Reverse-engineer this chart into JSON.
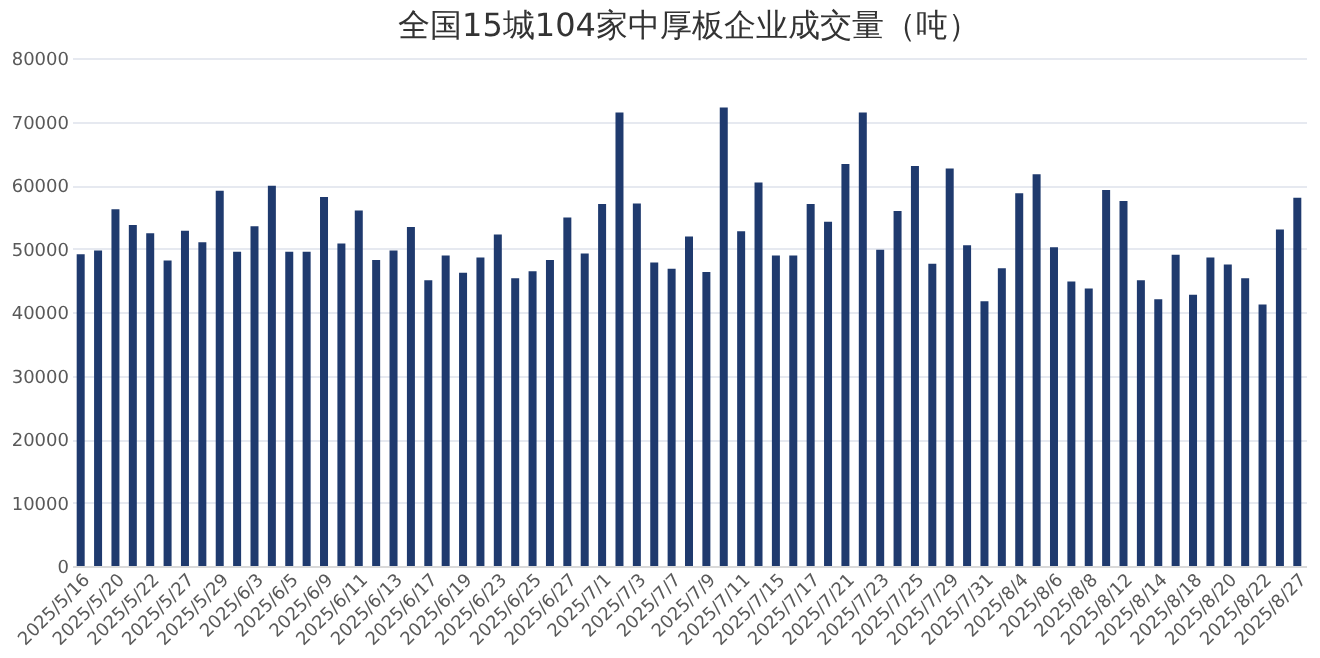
{
  "chart_data": {
    "type": "bar",
    "title": "全国15城104家中厚板企业成交量（吨）",
    "categories": [
      "2025/5/16",
      null,
      "2025/5/20",
      null,
      "2025/5/22",
      null,
      "2025/5/27",
      null,
      "2025/5/29",
      null,
      "2025/6/3",
      null,
      "2025/6/5",
      null,
      "2025/6/9",
      null,
      "2025/6/11",
      null,
      "2025/6/13",
      null,
      "2025/6/17",
      null,
      "2025/6/19",
      null,
      "2025/6/23",
      null,
      "2025/6/25",
      null,
      "2025/6/27",
      null,
      "2025/7/1",
      null,
      "2025/7/3",
      null,
      "2025/7/7",
      null,
      "2025/7/9",
      null,
      "2025/7/11",
      null,
      "2025/7/15",
      null,
      "2025/7/17",
      null,
      "2025/7/21",
      null,
      "2025/7/23",
      null,
      "2025/7/25",
      null,
      "2025/7/29",
      null,
      "2025/7/31",
      null,
      "2025/8/4",
      null,
      "2025/8/6",
      null,
      "2025/8/8",
      null,
      "2025/8/12",
      null,
      "2025/8/14",
      null,
      "2025/8/18",
      null,
      "2025/8/20",
      null,
      "2025/8/22",
      null,
      "2025/8/27"
    ],
    "values": [
      49100,
      49700,
      56200,
      53700,
      52400,
      48100,
      52800,
      51000,
      59100,
      49500,
      53500,
      59900,
      49500,
      49500,
      58100,
      50800,
      56000,
      48200,
      49700,
      53400,
      45000,
      48900,
      46200,
      48600,
      52200,
      45300,
      46400,
      48200,
      54900,
      49200,
      57000,
      71400,
      57100,
      47800,
      46800,
      51900,
      46300,
      72200,
      52700,
      60400,
      48900,
      48900,
      57000,
      54200,
      63300,
      71400,
      49800,
      55900,
      63000,
      47600,
      62600,
      50500,
      41700,
      46900,
      58700,
      61700,
      50200,
      44800,
      43700,
      59200,
      57500,
      45000,
      42000,
      49000,
      42700,
      48600,
      47500,
      45300,
      41200,
      53000,
      58000
    ],
    "color": "#1f3a6e",
    "ylim": [
      0,
      80000
    ],
    "yticks": [
      0,
      10000,
      20000,
      30000,
      40000,
      50000,
      60000,
      70000,
      80000
    ],
    "grid": "y"
  }
}
